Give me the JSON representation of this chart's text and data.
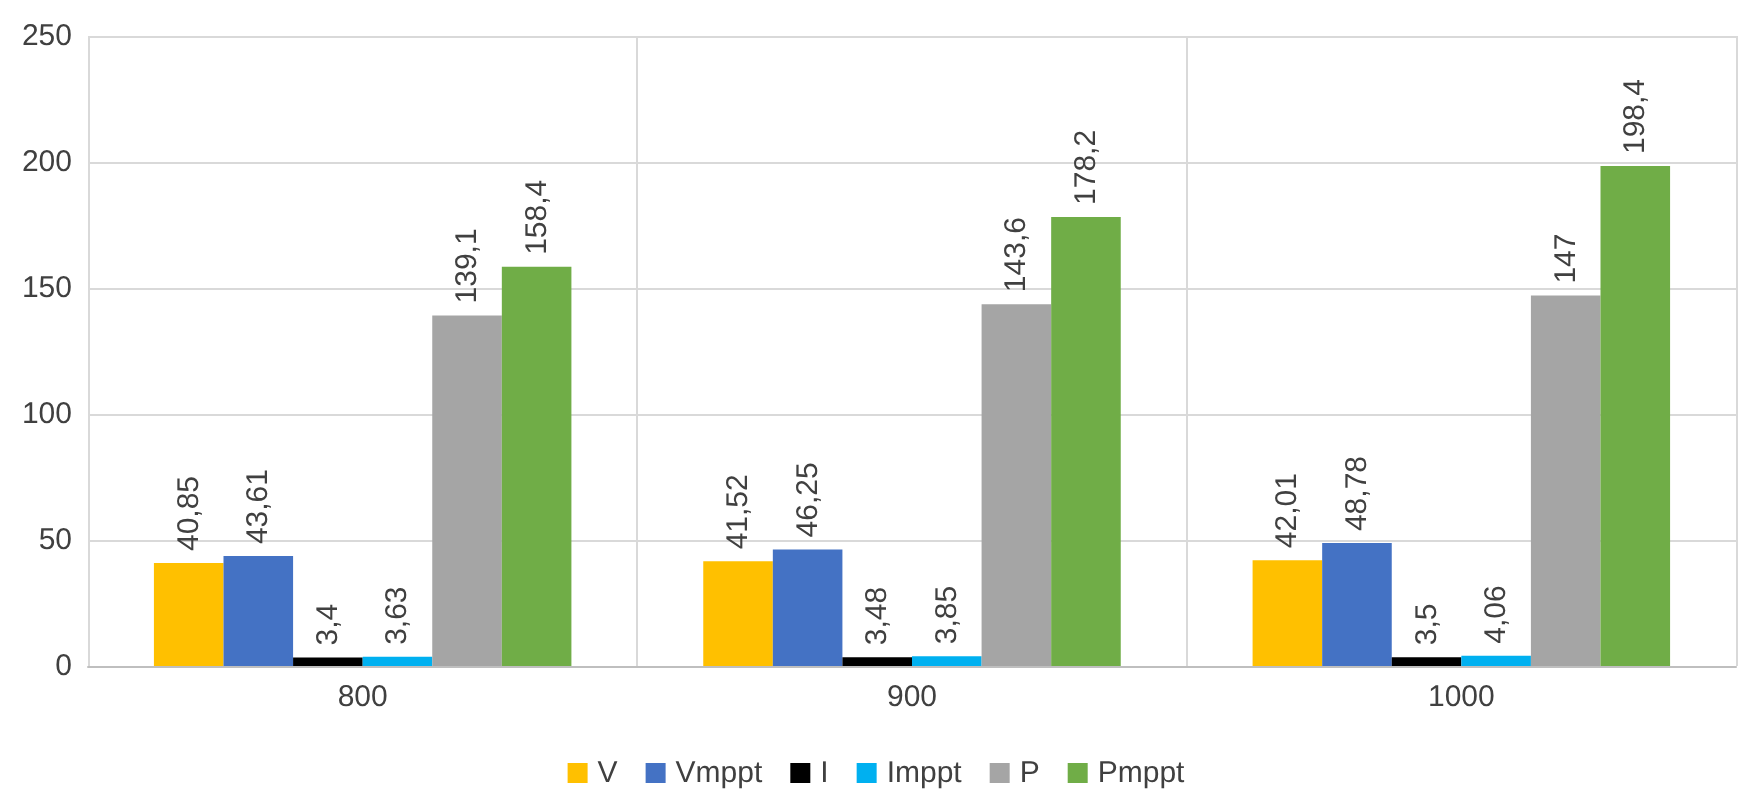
{
  "chart_data": {
    "type": "bar",
    "categories": [
      "800",
      "900",
      "1000"
    ],
    "series": [
      {
        "name": "V",
        "color": "#ffc000",
        "values": [
          40.85,
          41.52,
          42.01
        ],
        "value_labels": [
          "40,85",
          "41,52",
          "42,01"
        ]
      },
      {
        "name": "Vmppt",
        "color": "#4472c4",
        "values": [
          43.61,
          46.25,
          48.78
        ],
        "value_labels": [
          "43,61",
          "46,25",
          "48,78"
        ]
      },
      {
        "name": "I",
        "color": "#000000",
        "values": [
          3.4,
          3.48,
          3.5
        ],
        "value_labels": [
          "3,4",
          "3,48",
          "3,5"
        ]
      },
      {
        "name": "Imppt",
        "color": "#00b0f0",
        "values": [
          3.63,
          3.85,
          4.06
        ],
        "value_labels": [
          "3,63",
          "3,85",
          "4,06"
        ]
      },
      {
        "name": "P",
        "color": "#a5a5a5",
        "values": [
          139.1,
          143.6,
          147
        ],
        "value_labels": [
          "139,1",
          "143,6",
          "147"
        ]
      },
      {
        "name": "Pmppt",
        "color": "#70ad47",
        "values": [
          158.4,
          178.2,
          198.4
        ],
        "value_labels": [
          "158,4",
          "178,2",
          "198,4"
        ]
      }
    ],
    "ylim": [
      0,
      250
    ],
    "yticks": [
      0,
      50,
      100,
      150,
      200,
      250
    ],
    "grid": true,
    "legend": "bottom"
  }
}
